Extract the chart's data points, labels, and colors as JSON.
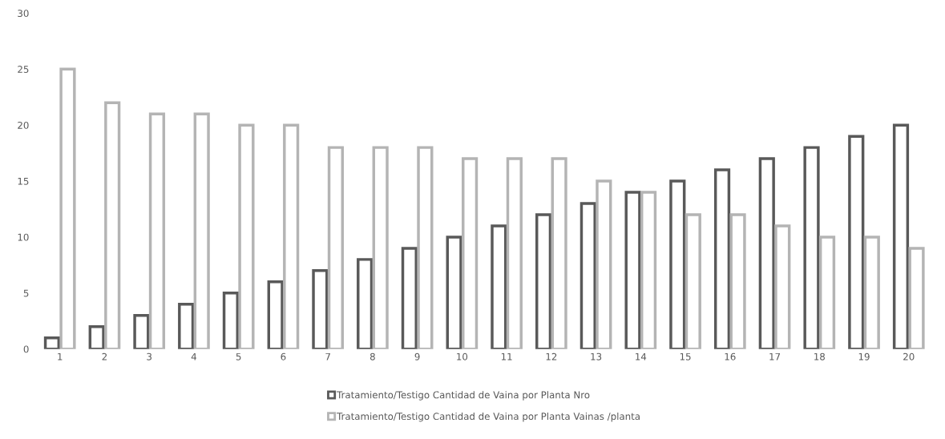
{
  "chart_data": {
    "type": "bar",
    "categories": [
      "1",
      "2",
      "3",
      "4",
      "5",
      "6",
      "7",
      "8",
      "9",
      "10",
      "11",
      "12",
      "13",
      "14",
      "15",
      "16",
      "17",
      "18",
      "19",
      "20"
    ],
    "series": [
      {
        "name": "Tratamiento/Testigo Cantidad de Vaina por Planta Nro",
        "color": "#595959",
        "values": [
          1,
          2,
          3,
          4,
          5,
          6,
          7,
          8,
          9,
          10,
          11,
          12,
          13,
          14,
          15,
          16,
          17,
          18,
          19,
          20
        ]
      },
      {
        "name": "Tratamiento/Testigo Cantidad de Vaina por Planta Vainas /planta",
        "color": "#b4b4b4",
        "values": [
          25,
          22,
          21,
          21,
          20,
          20,
          18,
          18,
          18,
          17,
          17,
          17,
          15,
          14,
          12,
          12,
          11,
          10,
          10,
          9
        ]
      }
    ],
    "ylim": [
      0,
      30
    ],
    "yticks": [
      0,
      5,
      10,
      15,
      20,
      25,
      30
    ],
    "grid": false,
    "legend": "bottom"
  }
}
